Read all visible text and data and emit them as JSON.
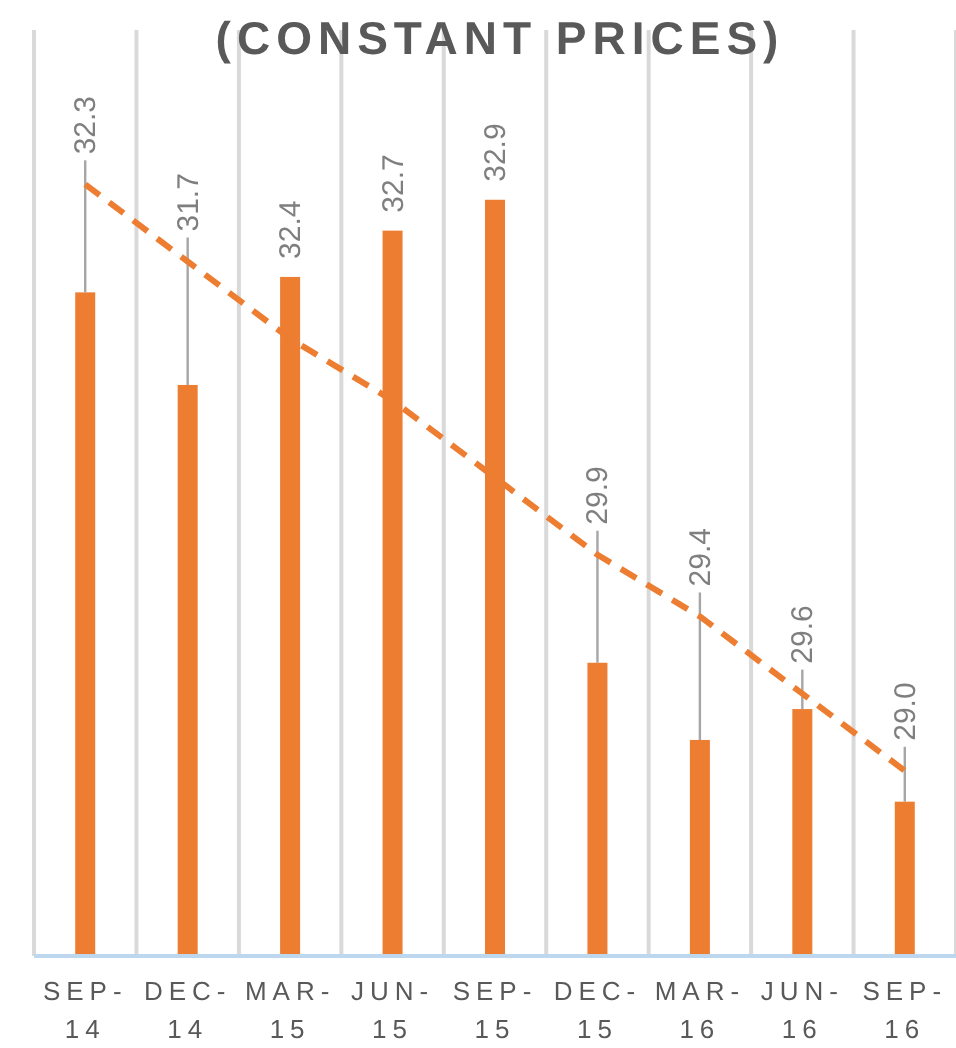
{
  "chart_data": {
    "type": "bar",
    "title": "(CONSTANT PRICES)",
    "categories": [
      "SEP-14",
      "DEC-14",
      "MAR-15",
      "JUN-15",
      "SEP-15",
      "DEC-15",
      "MAR-16",
      "JUN-16",
      "SEP-16"
    ],
    "series": [
      {
        "color": "#ed7d31",
        "values": [
          32.3,
          31.7,
          32.4,
          32.7,
          32.9,
          29.9,
          29.4,
          29.6,
          29.0
        ],
        "value_labels": [
          "32.3",
          "31.7",
          "32.4",
          "32.7",
          "32.9",
          "29.9",
          "29.4",
          "29.6",
          "29.0"
        ]
      },
      {
        "type": "line",
        "color": "#ed7d31",
        "line_style": "dashed",
        "values": [
          33.0,
          32.5,
          32.0,
          31.6,
          31.1,
          30.6,
          30.2,
          29.7,
          29.2
        ]
      }
    ],
    "ylim": [
      28.0,
      34.0
    ],
    "tick_labels": "x",
    "grid": "x"
  }
}
